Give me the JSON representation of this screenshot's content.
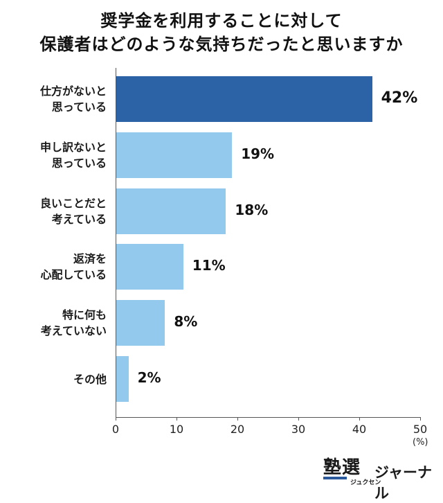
{
  "chart_data": {
    "type": "bar",
    "orientation": "horizontal",
    "title_line1": "奨学金を利用することに対して",
    "title_line2": "保護者はどのような気持ちだったと思いますか",
    "categories": [
      [
        "仕方がないと",
        "思っている"
      ],
      [
        "申し訳ないと",
        "思っている"
      ],
      [
        "良いことだと",
        "考えている"
      ],
      [
        "返済を",
        "心配している"
      ],
      [
        "特に何も",
        "考えていない"
      ],
      [
        "その他"
      ]
    ],
    "values": [
      42,
      19,
      18,
      11,
      8,
      2
    ],
    "value_labels": [
      "42%",
      "19%",
      "18%",
      "11%",
      "8%",
      "2%"
    ],
    "xlim": [
      0,
      50
    ],
    "xticks": [
      0,
      10,
      20,
      30,
      40,
      50
    ],
    "xunit": "(%)",
    "colors": {
      "highlight": "#2b63a6",
      "default": "#93c9ec"
    },
    "grid": false
  },
  "brand": {
    "name": "塾選",
    "reading": "ジュクセン",
    "suffix": "ジャーナル"
  }
}
